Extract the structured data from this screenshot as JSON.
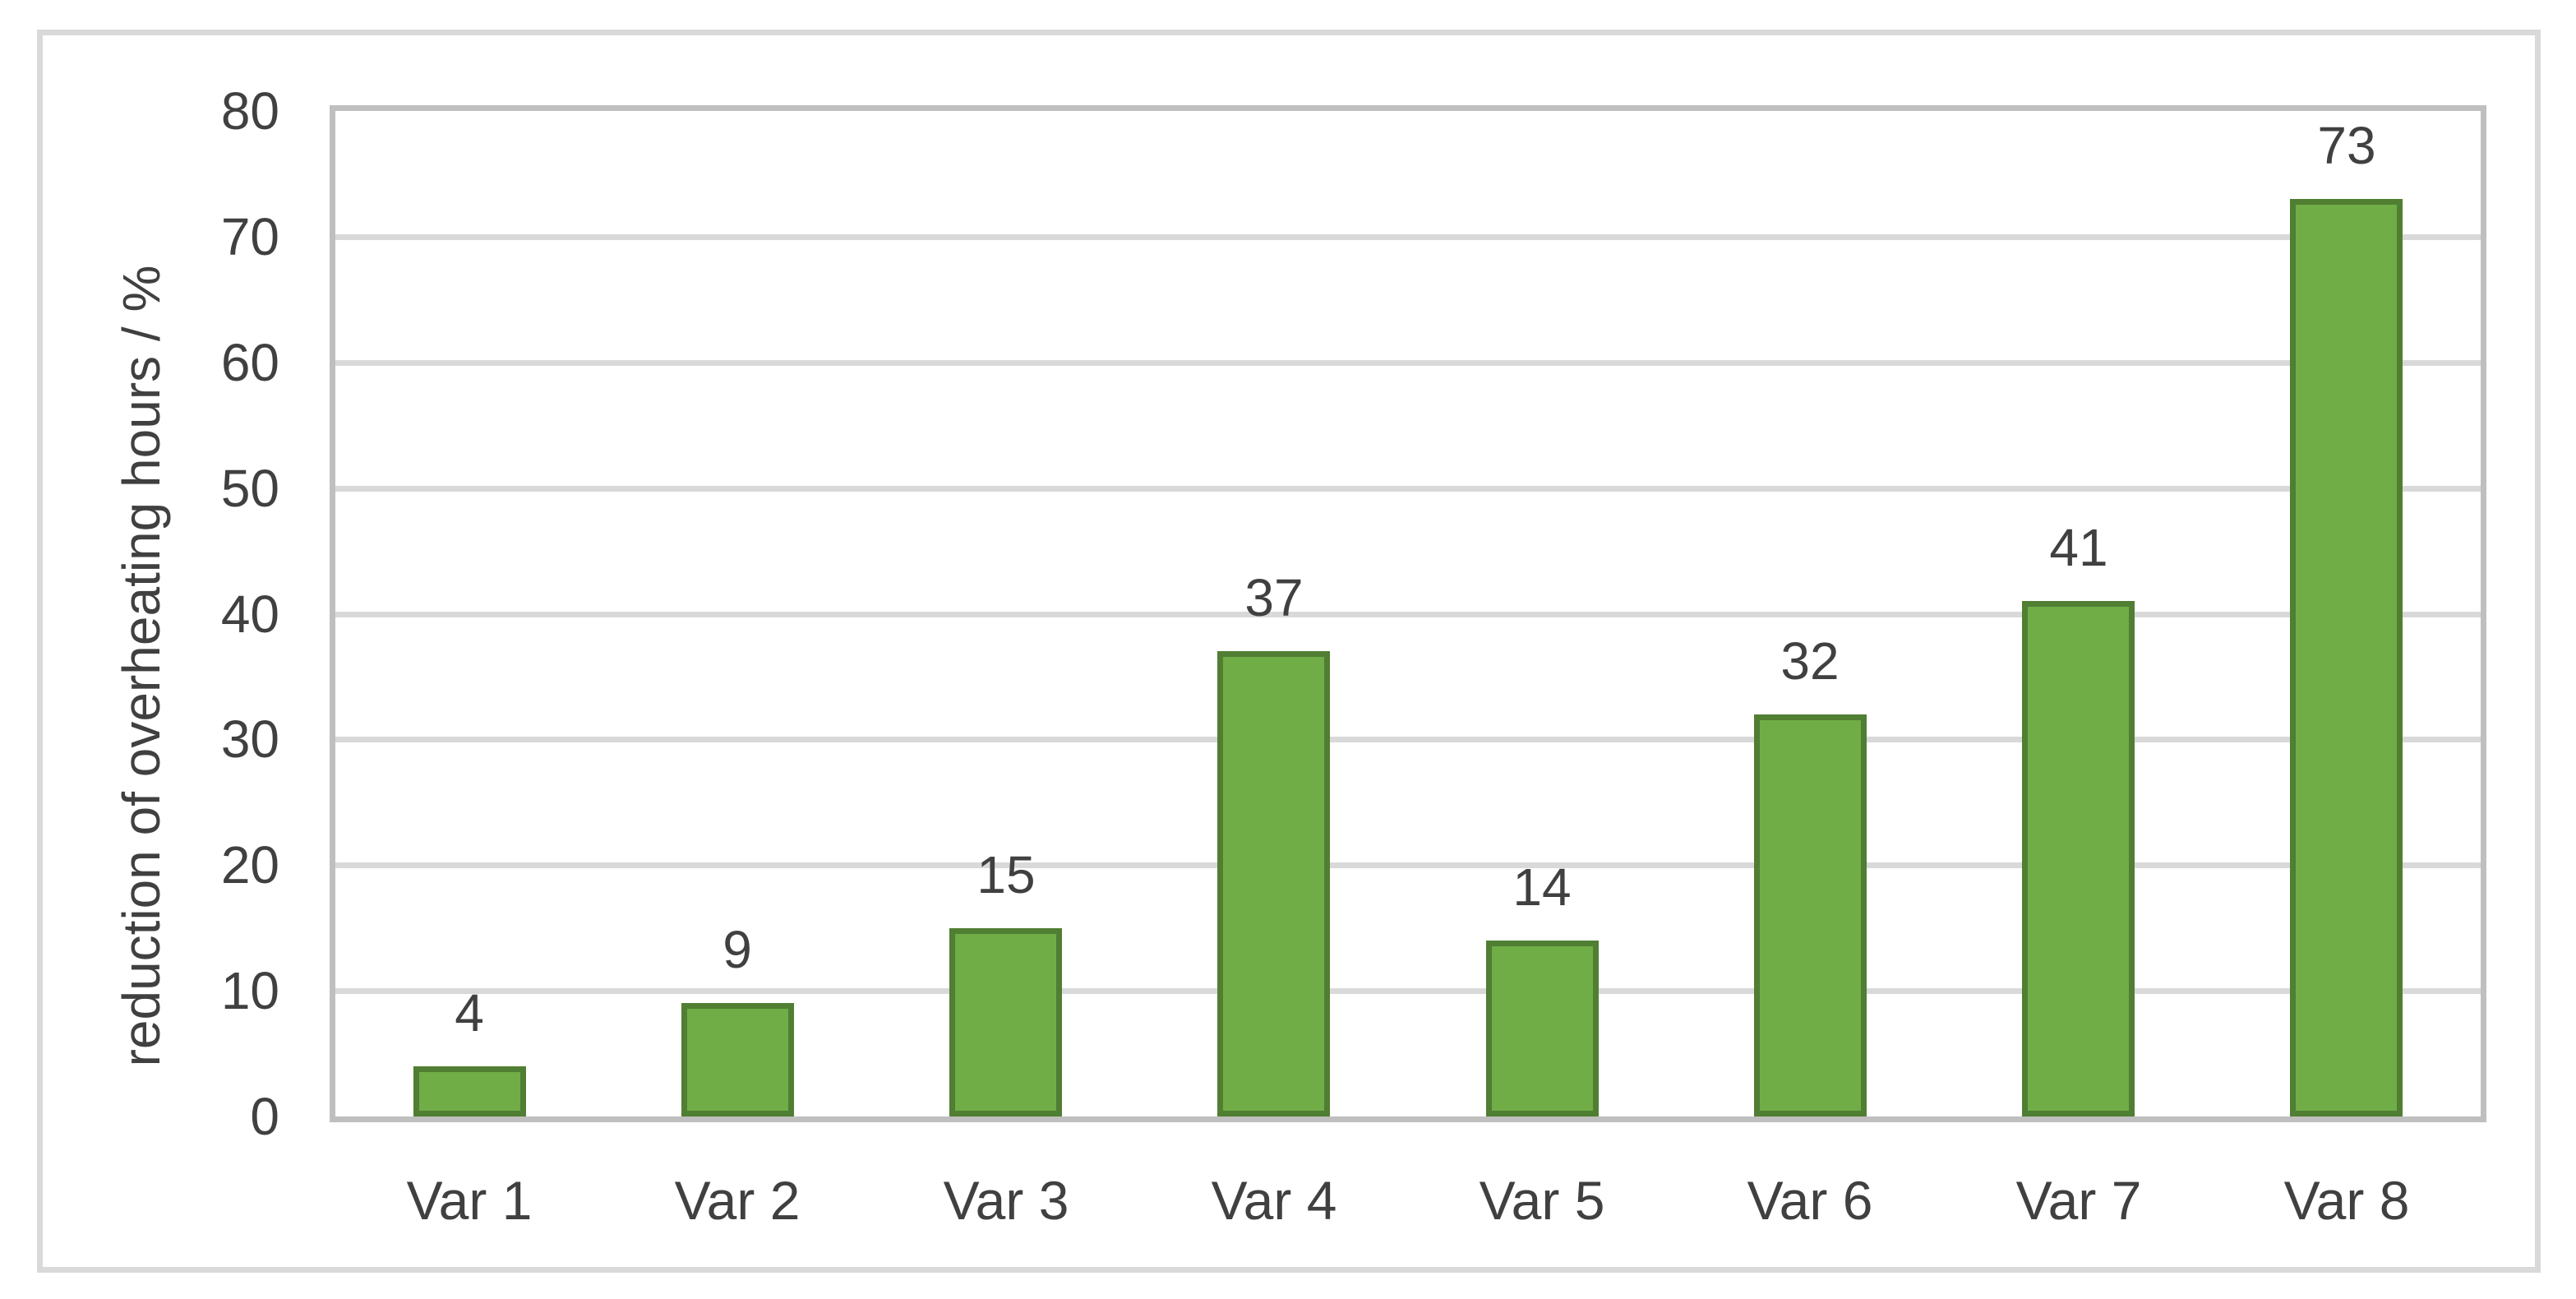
{
  "chart_data": {
    "type": "bar",
    "categories": [
      "Var 1",
      "Var 2",
      "Var 3",
      "Var 4",
      "Var 5",
      "Var 6",
      "Var 7",
      "Var 8"
    ],
    "values": [
      4,
      9,
      15,
      37,
      14,
      32,
      41,
      73
    ],
    "data_labels": [
      "4",
      "9",
      "15",
      "37",
      "14",
      "32",
      "41",
      "73"
    ],
    "title": "",
    "xlabel": "",
    "ylabel": "reduction of overheating hours / %",
    "ylim": [
      0,
      80
    ],
    "yticks": [
      0,
      10,
      20,
      30,
      40,
      50,
      60,
      70,
      80
    ],
    "grid": "horizontal",
    "legend": "none",
    "colors": {
      "bar_fill": "#70AD47",
      "bar_border": "#507E32",
      "gridline": "#D9D9D9",
      "axis_line": "#BFBFBF",
      "text": "#404040",
      "chart_border": "#D9D9D9",
      "background": "#FFFFFF"
    }
  }
}
